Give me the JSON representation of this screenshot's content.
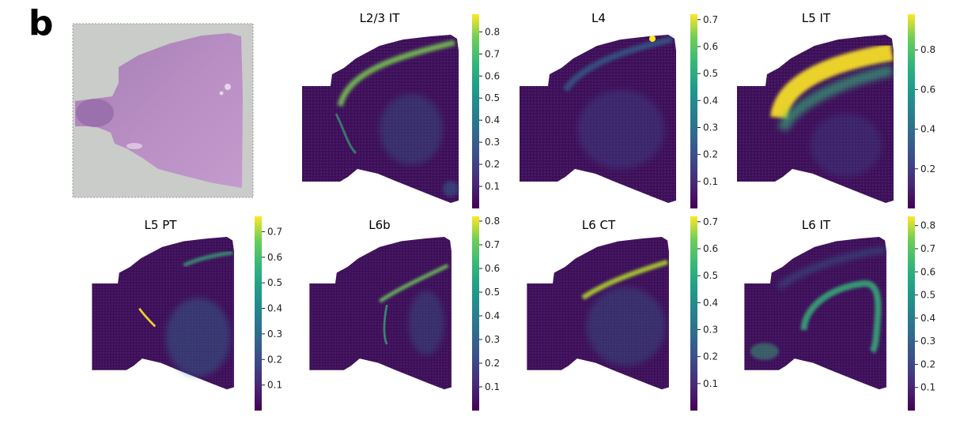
{
  "figure": {
    "panel_label": "b"
  },
  "colors": {
    "low": "#440154",
    "mid": "#21918c",
    "high": "#fde725"
  },
  "chart_data": [
    {
      "type": "heatmap",
      "title": "L2/3 IT",
      "cbar_ticks": [
        0.1,
        0.2,
        0.3,
        0.4,
        0.5,
        0.6,
        0.7,
        0.8
      ],
      "vmin": 0.0,
      "vmax": 0.88
    },
    {
      "type": "heatmap",
      "title": "L4",
      "cbar_ticks": [
        0.1,
        0.2,
        0.3,
        0.4,
        0.5,
        0.6,
        0.7
      ],
      "vmin": 0.0,
      "vmax": 0.72
    },
    {
      "type": "heatmap",
      "title": "L5 IT",
      "cbar_ticks": [
        0.2,
        0.4,
        0.6,
        0.8
      ],
      "vmin": 0.0,
      "vmax": 0.98
    },
    {
      "type": "heatmap",
      "title": "L5 PT",
      "cbar_ticks": [
        0.1,
        0.2,
        0.3,
        0.4,
        0.5,
        0.6,
        0.7
      ],
      "vmin": 0.0,
      "vmax": 0.76
    },
    {
      "type": "heatmap",
      "title": "L6b",
      "cbar_ticks": [
        0.1,
        0.2,
        0.3,
        0.4,
        0.5,
        0.6,
        0.7,
        0.8
      ],
      "vmin": 0.0,
      "vmax": 0.82
    },
    {
      "type": "heatmap",
      "title": "L6 CT",
      "cbar_ticks": [
        0.1,
        0.2,
        0.3,
        0.4,
        0.5,
        0.6,
        0.7
      ],
      "vmin": 0.0,
      "vmax": 0.72
    },
    {
      "type": "heatmap",
      "title": "L6 IT",
      "cbar_ticks": [
        0.1,
        0.2,
        0.3,
        0.4,
        0.5,
        0.6,
        0.7,
        0.8
      ],
      "vmin": 0.0,
      "vmax": 0.84
    }
  ]
}
